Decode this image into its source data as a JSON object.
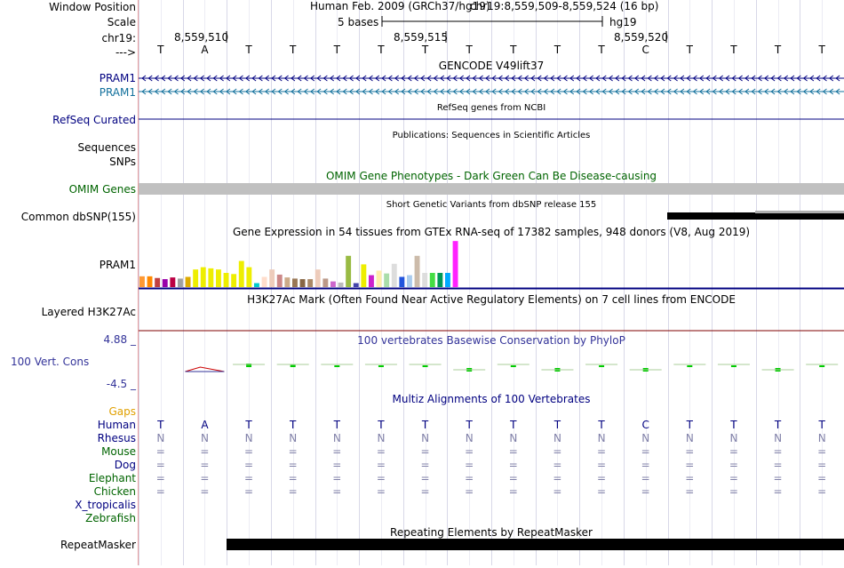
{
  "browser": {
    "assembly_title": "Human Feb. 2009 (GRCh37/hg19)",
    "position": "chr19:8,559,509-8,559,524 (16 bp)",
    "scale_text": "5 bases",
    "scale_db": "hg19",
    "coords": [
      "8,559,510",
      "8,559,515",
      "8,559,520"
    ],
    "bases": [
      "T",
      "A",
      "T",
      "T",
      "T",
      "T",
      "T",
      "T",
      "T",
      "T",
      "T",
      "C",
      "T",
      "T",
      "T",
      "T"
    ]
  },
  "labels": {
    "window_position": "Window Position",
    "scale": "Scale",
    "chrom": "chr19:",
    "strand": "--->",
    "pram1_a": "PRAM1",
    "pram1_b": "PRAM1",
    "refseq": "RefSeq Curated",
    "sequences": "Sequences",
    "snps": "SNPs",
    "omim": "OMIM Genes",
    "dbsnp": "Common dbSNP(155)",
    "gtex_gene": "PRAM1",
    "h3k27ac": "Layered H3K27Ac",
    "cons_max": "4.88 _",
    "cons": "100 Vert. Cons",
    "cons_min": "-4.5 _",
    "gaps": "Gaps",
    "repeatmasker": "RepeatMasker"
  },
  "species": [
    "Human",
    "Rhesus",
    "Mouse",
    "Dog",
    "Elephant",
    "Chicken",
    "X_tropicalis",
    "Zebrafish"
  ],
  "track_titles": {
    "gencode": "GENCODE V49lift37",
    "refseq": "RefSeq genes from NCBI",
    "pubs": "Publications: Sequences in Scientific Articles",
    "omim": "OMIM Gene Phenotypes - Dark Green Can Be Disease-causing",
    "dbsnp": "Short Genetic Variants from dbSNP release 155",
    "gtex": "Gene Expression in 54 tissues from GTEx RNA-seq of 17382 samples, 948 donors (V8, Aug 2019)",
    "h3k27ac": "H3K27Ac Mark (Often Found Near Active Regulatory Elements) on 7 cell lines from ENCODE",
    "phylop": "100 vertebrates Basewise Conservation by PhyloP",
    "multiz": "Multiz Alignments of 100 Vertebrates",
    "rmsk": "Repeating Elements by RepeatMasker"
  },
  "colors": {
    "navy": "#000080",
    "teal": "#12709c",
    "green": "#006400",
    "gray": "#c0c0c0",
    "phylop_green": "#00cc00",
    "h3k_line": "#7f0000",
    "gaps": "#e0a000"
  },
  "gtex": [
    {
      "c": "#ff9933",
      "v": 0.38
    },
    {
      "c": "#ff8800",
      "v": 0.38
    },
    {
      "c": "#c04040",
      "v": 0.32
    },
    {
      "c": "#9900aa",
      "v": 0.28
    },
    {
      "c": "#bb0044",
      "v": 0.34
    },
    {
      "c": "#a0a0a0",
      "v": 0.3
    },
    {
      "c": "#ddaa00",
      "v": 0.36
    },
    {
      "c": "#eeee00",
      "v": 0.62
    },
    {
      "c": "#eeee00",
      "v": 0.7
    },
    {
      "c": "#eeee00",
      "v": 0.66
    },
    {
      "c": "#eeee00",
      "v": 0.62
    },
    {
      "c": "#eeee00",
      "v": 0.5
    },
    {
      "c": "#eeee00",
      "v": 0.46
    },
    {
      "c": "#eeee00",
      "v": 0.92
    },
    {
      "c": "#eeee00",
      "v": 0.7
    },
    {
      "c": "#00cccc",
      "v": 0.14
    },
    {
      "c": "#ffddcc",
      "v": 0.36
    },
    {
      "c": "#eeccbb",
      "v": 0.62
    },
    {
      "c": "#cc8888",
      "v": 0.44
    },
    {
      "c": "#ccaa88",
      "v": 0.34
    },
    {
      "c": "#997755",
      "v": 0.3
    },
    {
      "c": "#886644",
      "v": 0.28
    },
    {
      "c": "#aa8866",
      "v": 0.28
    },
    {
      "c": "#eeccbb",
      "v": 0.62
    },
    {
      "c": "#bb9988",
      "v": 0.3
    },
    {
      "c": "#cc66cc",
      "v": 0.2
    },
    {
      "c": "#bbbbbb",
      "v": 0.16
    },
    {
      "c": "#99bb44",
      "v": 1.1
    },
    {
      "c": "#4444aa",
      "v": 0.14
    },
    {
      "c": "#eeee00",
      "v": 0.8
    },
    {
      "c": "#cc22cc",
      "v": 0.42
    },
    {
      "c": "#ffeeaa",
      "v": 0.58
    },
    {
      "c": "#aaddaa",
      "v": 0.48
    },
    {
      "c": "#dddddd",
      "v": 0.82
    },
    {
      "c": "#2255dd",
      "v": 0.36
    },
    {
      "c": "#aaccee",
      "v": 0.42
    },
    {
      "c": "#ccbbaa",
      "v": 1.1
    },
    {
      "c": "#dddddd",
      "v": 0.5
    },
    {
      "c": "#44dd44",
      "v": 0.5
    },
    {
      "c": "#009955",
      "v": 0.5
    },
    {
      "c": "#00aaff",
      "v": 0.5
    },
    {
      "c": "#ff22ff",
      "v": 1.62
    }
  ],
  "phylop": [
    {
      "col": 0,
      "v": 0
    },
    {
      "col": 1,
      "v": -0.7
    },
    {
      "col": 2,
      "v": 0.5
    },
    {
      "col": 3,
      "v": 0.3
    },
    {
      "col": 4,
      "v": 0.25
    },
    {
      "col": 5,
      "v": 0.25
    },
    {
      "col": 6,
      "v": 0.25
    },
    {
      "col": 7,
      "v": -0.3
    },
    {
      "col": 8,
      "v": 0.25
    },
    {
      "col": 9,
      "v": -0.3
    },
    {
      "col": 10,
      "v": 0.25
    },
    {
      "col": 11,
      "v": -0.3
    },
    {
      "col": 12,
      "v": 0.2
    },
    {
      "col": 13,
      "v": 0.2
    },
    {
      "col": 14,
      "v": -0.3
    },
    {
      "col": 15,
      "v": 0.25
    }
  ],
  "alignments": {
    "Rhesus": [
      "N",
      "N",
      "N",
      "N",
      "N",
      "N",
      "N",
      "N",
      "N",
      "N",
      "N",
      "N",
      "N",
      "N",
      "N",
      "N"
    ],
    "Mouse": [
      "=",
      "=",
      "=",
      "=",
      "=",
      "=",
      "=",
      "=",
      "=",
      "=",
      "=",
      "=",
      "=",
      "=",
      "=",
      "="
    ],
    "Dog": [
      "=",
      "=",
      "=",
      "=",
      "=",
      "=",
      "=",
      "=",
      "=",
      "=",
      "=",
      "=",
      "=",
      "=",
      "=",
      "="
    ],
    "Elephant": [
      "=",
      "=",
      "=",
      "=",
      "=",
      "=",
      "=",
      "=",
      "=",
      "=",
      "=",
      "=",
      "=",
      "=",
      "=",
      "="
    ],
    "Chicken": [
      "=",
      "=",
      "=",
      "=",
      "=",
      "=",
      "=",
      "=",
      "=",
      "=",
      "=",
      "=",
      "=",
      "=",
      "=",
      "="
    ]
  }
}
